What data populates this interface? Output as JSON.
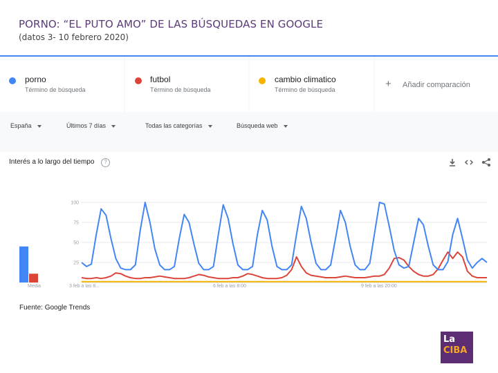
{
  "header": {
    "title": "PORNO: “EL PUTO AMO” DE LAS BÚSQUEDAS EN GOOGLE",
    "subtitle": "(datos 3- 10 febrero 2020)"
  },
  "terms": [
    {
      "name": "porno",
      "sub": "Término de búsqueda",
      "color": "#4285f4"
    },
    {
      "name": "futbol",
      "sub": "Término de búsqueda",
      "color": "#db4437"
    },
    {
      "name": "cambio climatico",
      "sub": "Término de búsqueda",
      "color": "#f4b400"
    }
  ],
  "add_comparison": "Añadir comparación",
  "filters": {
    "region": "España",
    "period": "Últimos 7 días",
    "category": "Todas las categorías",
    "search_type": "Búsqueda web"
  },
  "chart_header": "Interés a lo largo del tiempo",
  "source": "Fuente: Google Trends",
  "logo": {
    "line1": "La",
    "line2": "CIBA"
  },
  "chart_data": {
    "type": "line",
    "ylim": [
      0,
      100
    ],
    "y_ticks": [
      "100",
      "75",
      "50",
      "25"
    ],
    "x_ticks": [
      "3 feb a las 8...",
      "6 feb a las 8:00",
      "9 feb a las 20:00"
    ],
    "average_label": "Media",
    "averages": [
      {
        "name": "porno",
        "value": 45
      },
      {
        "name": "futbol",
        "value": 11
      }
    ],
    "series": [
      {
        "name": "porno",
        "color": "#4285f4",
        "values": [
          25,
          20,
          23,
          60,
          92,
          84,
          55,
          30,
          18,
          16,
          16,
          22,
          65,
          100,
          75,
          42,
          22,
          16,
          16,
          20,
          55,
          85,
          75,
          48,
          24,
          16,
          16,
          20,
          60,
          97,
          80,
          48,
          22,
          16,
          16,
          20,
          60,
          90,
          78,
          45,
          20,
          16,
          16,
          22,
          60,
          95,
          80,
          50,
          24,
          16,
          16,
          22,
          55,
          90,
          75,
          45,
          22,
          16,
          16,
          24,
          62,
          100,
          98,
          70,
          40,
          22,
          18,
          20,
          50,
          80,
          72,
          45,
          22,
          16,
          16,
          26,
          60,
          80,
          55,
          28,
          18,
          25,
          30,
          25
        ]
      },
      {
        "name": "futbol",
        "color": "#db4437",
        "values": [
          6,
          5,
          5,
          6,
          5,
          6,
          8,
          12,
          11,
          8,
          6,
          5,
          5,
          6,
          6,
          7,
          8,
          7,
          6,
          5,
          5,
          5,
          6,
          8,
          10,
          9,
          7,
          6,
          5,
          5,
          5,
          6,
          6,
          8,
          11,
          10,
          8,
          6,
          5,
          5,
          5,
          6,
          9,
          16,
          32,
          20,
          12,
          9,
          8,
          7,
          6,
          6,
          6,
          7,
          8,
          7,
          6,
          6,
          6,
          7,
          8,
          8,
          10,
          18,
          30,
          31,
          28,
          20,
          14,
          10,
          8,
          8,
          10,
          17,
          28,
          38,
          30,
          38,
          32,
          14,
          8,
          6,
          6,
          6
        ]
      },
      {
        "name": "cambio climatico",
        "color": "#f4b400",
        "values": [
          1,
          1,
          1,
          1,
          1,
          1,
          1,
          1,
          1,
          1,
          1,
          1,
          1,
          1,
          1,
          1,
          1,
          1,
          1,
          1,
          1,
          1,
          1,
          1,
          1,
          1,
          1,
          1,
          1,
          1,
          1,
          1,
          1,
          1,
          1,
          1,
          1,
          1,
          1,
          1,
          1,
          1,
          1,
          1,
          1,
          1,
          1,
          1,
          1,
          1,
          1,
          1,
          1,
          1,
          1,
          1,
          1,
          1,
          1,
          1,
          1,
          1,
          1,
          1,
          1,
          1,
          1,
          1,
          1,
          1,
          1,
          1,
          1,
          1,
          1,
          1,
          1,
          1,
          1,
          1,
          1,
          1,
          1,
          1
        ]
      }
    ]
  }
}
